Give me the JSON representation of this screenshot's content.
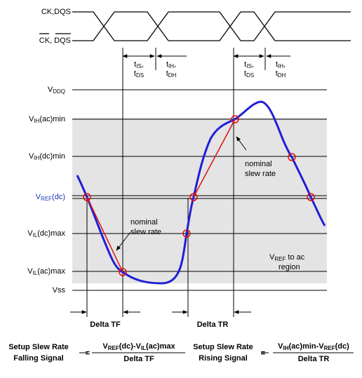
{
  "signals": [
    {
      "label": "CK,DQS"
    },
    {
      "label": "CK, DQS"
    }
  ],
  "timing": [
    {
      "lines": [
        [
          {
            "t": "t"
          },
          {
            "t": "IS",
            "sub": true
          },
          {
            "t": ","
          }
        ],
        [
          {
            "t": "t"
          },
          {
            "t": "DS",
            "sub": true
          }
        ]
      ]
    },
    {
      "lines": [
        [
          {
            "t": "t"
          },
          {
            "t": "IH",
            "sub": true
          },
          {
            "t": ","
          }
        ],
        [
          {
            "t": "t"
          },
          {
            "t": "DH",
            "sub": true
          }
        ]
      ]
    },
    {
      "lines": [
        [
          {
            "t": "t"
          },
          {
            "t": "IS",
            "sub": true
          },
          {
            "t": ","
          }
        ],
        [
          {
            "t": "t"
          },
          {
            "t": "DS",
            "sub": true
          }
        ]
      ]
    },
    {
      "lines": [
        [
          {
            "t": "t"
          },
          {
            "t": "IH",
            "sub": true
          },
          {
            "t": ","
          }
        ],
        [
          {
            "t": "t"
          },
          {
            "t": "DH",
            "sub": true
          }
        ]
      ]
    }
  ],
  "levels": [
    {
      "label": [
        {
          "t": "V"
        },
        {
          "t": "DDQ",
          "sub": true
        }
      ]
    },
    {
      "label": [
        {
          "t": "V"
        },
        {
          "t": "IH",
          "sub": true
        },
        {
          "t": "(ac)min"
        }
      ]
    },
    {
      "label": [
        {
          "t": "V"
        },
        {
          "t": "IH",
          "sub": true
        },
        {
          "t": "(dc)min"
        }
      ]
    },
    {
      "label": [
        {
          "t": "V"
        },
        {
          "t": "REF",
          "sub": true
        },
        {
          "t": "(dc)"
        }
      ],
      "color": "#1c35b8"
    },
    {
      "label": [
        {
          "t": "V"
        },
        {
          "t": "IL",
          "sub": true
        },
        {
          "t": "(dc)max"
        }
      ]
    },
    {
      "label": [
        {
          "t": "V"
        },
        {
          "t": "IL",
          "sub": true
        },
        {
          "t": "(ac)max"
        }
      ]
    },
    {
      "label": [
        {
          "t": "Vss"
        }
      ]
    }
  ],
  "annotations": {
    "falling_slew": [
      "nominal",
      "slew rate"
    ],
    "rising_slew": [
      "nominal",
      "slew rate"
    ],
    "region": {
      "line1": [
        {
          "t": "V"
        },
        {
          "t": "REF",
          "sub": true
        },
        {
          "t": " to ac"
        }
      ],
      "line2": "region"
    }
  },
  "deltas": [
    "Delta TF",
    "Delta TR"
  ],
  "formulas": [
    {
      "name": [
        "Setup Slew Rate",
        "Falling Signal"
      ],
      "equals": "=",
      "numerator": [
        {
          "t": "V"
        },
        {
          "t": "REF",
          "sub": true
        },
        {
          "t": "(dc)-V"
        },
        {
          "t": "IL",
          "sub": true
        },
        {
          "t": "(ac)max"
        }
      ],
      "denominator": "Delta TF"
    },
    {
      "name": [
        "Setup Slew Rate",
        "Rising Signal"
      ],
      "equals": "=",
      "numerator": [
        {
          "t": "V"
        },
        {
          "t": "IH",
          "sub": true
        },
        {
          "t": "(ac)min-V"
        },
        {
          "t": "REF",
          "sub": true
        },
        {
          "t": "(dc)"
        }
      ],
      "denominator": "Delta TR"
    }
  ]
}
